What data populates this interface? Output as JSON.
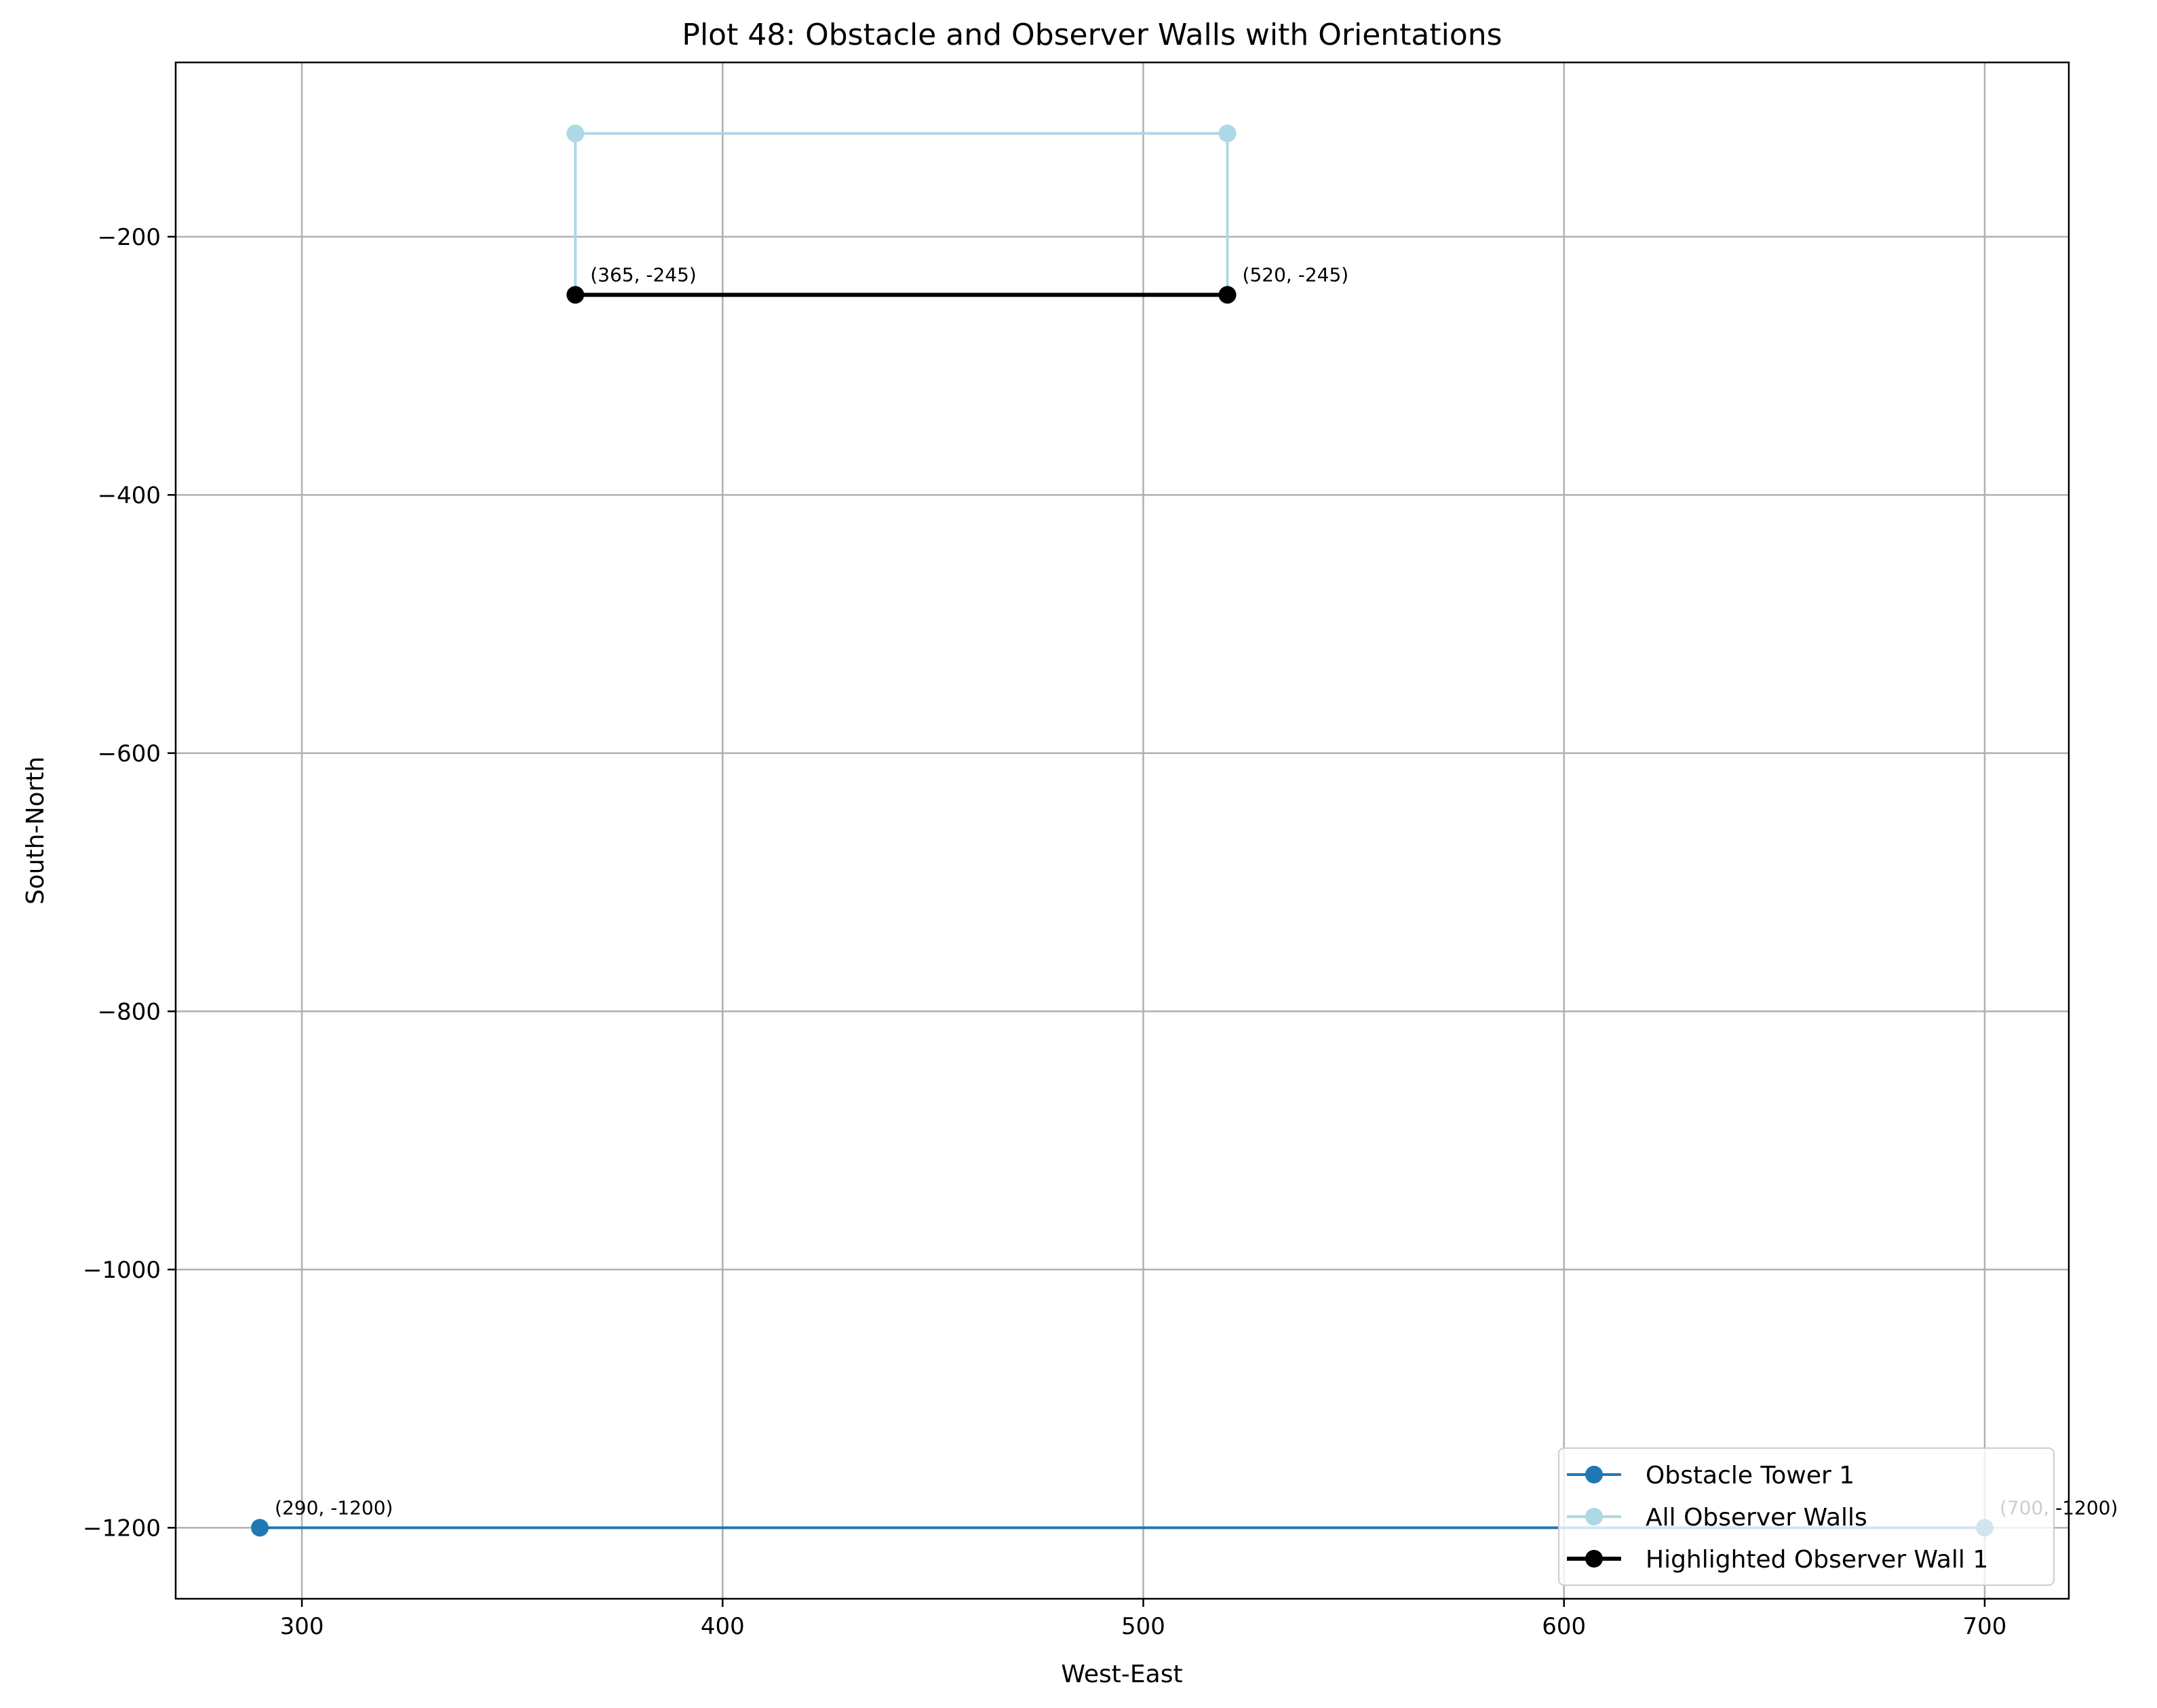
{
  "chart_data": {
    "type": "line",
    "title": "Plot 48: Obstacle and Observer Walls with Orientations",
    "xlabel": "West-East",
    "ylabel": "South-North",
    "xlim": [
      270,
      720
    ],
    "ylim": [
      -1255,
      -65
    ],
    "xticks": [
      300,
      400,
      500,
      600,
      700
    ],
    "yticks": [
      -200,
      -400,
      -600,
      -800,
      -1000,
      -1200
    ],
    "xtick_labels": [
      "300",
      "400",
      "500",
      "600",
      "700"
    ],
    "ytick_labels": [
      "−200",
      "−400",
      "−600",
      "−800",
      "−1000",
      "−1200"
    ],
    "grid": true,
    "legend_position": "lower-right",
    "series": [
      {
        "name": "Obstacle Tower 1",
        "color": "#1f77b4",
        "points": [
          [
            290,
            -1200
          ],
          [
            700,
            -1200
          ]
        ]
      },
      {
        "name": "All Observer Walls",
        "color": "#add8e6",
        "points": [
          [
            365,
            -245
          ],
          [
            365,
            -120
          ],
          [
            520,
            -120
          ],
          [
            520,
            -245
          ]
        ]
      },
      {
        "name": "Highlighted Observer Wall 1",
        "color": "#000000",
        "points": [
          [
            365,
            -245
          ],
          [
            520,
            -245
          ]
        ]
      }
    ],
    "annotations": [
      {
        "text": "(365, -245)",
        "x": 365,
        "y": -245
      },
      {
        "text": "(520, -245)",
        "x": 520,
        "y": -245
      },
      {
        "text": "(290, -1200)",
        "x": 290,
        "y": -1200
      },
      {
        "text": "(700, -1200)",
        "x": 700,
        "y": -1200
      }
    ]
  }
}
